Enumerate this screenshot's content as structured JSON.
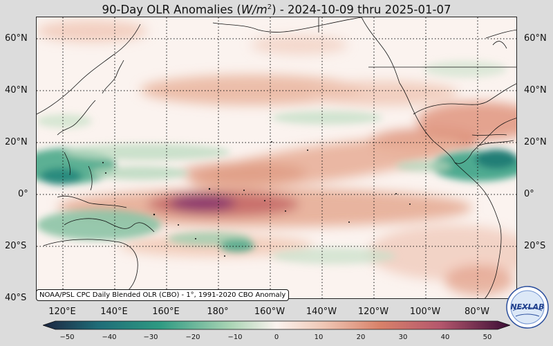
{
  "title": {
    "prefix": "90-Day OLR Anomalies (",
    "unit_base": "W/m",
    "unit_exp": "2",
    "suffix": ") - 2024-10-09 thru 2025-01-07"
  },
  "map": {
    "lat_labels_left": [
      "60°N",
      "40°N",
      "20°N",
      "0°",
      "20°S",
      "40°S"
    ],
    "lat_labels_right": [
      "60°N",
      "40°N",
      "20°N",
      "0°",
      "20°S"
    ],
    "lon_labels": [
      "120°E",
      "140°E",
      "160°E",
      "180°",
      "160°W",
      "140°W",
      "120°W",
      "100°W",
      "80°W"
    ],
    "source_note": "NOAA/PSL CPC Daily Blended OLR (CBO) - 1°, 1991-2020 CBO Anomaly"
  },
  "colorbar": {
    "ticks": [
      "−50",
      "−40",
      "−30",
      "−20",
      "−10",
      "0",
      "10",
      "20",
      "30",
      "40",
      "50"
    ],
    "range": [
      -50,
      50
    ],
    "colors": {
      "neg_extreme": "#1c2540",
      "neg_strong": "#1f6d78",
      "neg_mid": "#2e9a82",
      "neg_weak": "#a9d4b4",
      "neutral": "#fbf3ef",
      "pos_weak": "#f0c8b6",
      "pos_mid": "#d9826a",
      "pos_strong": "#b5576d",
      "pos_extreme": "#3a0d35"
    }
  },
  "logo": {
    "text": "NEXLAB"
  }
}
